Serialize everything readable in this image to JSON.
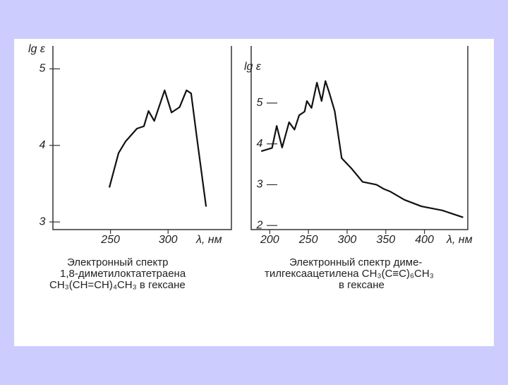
{
  "chart_data": [
    {
      "type": "line",
      "ylabel": "lg ε",
      "xlabel": "λ, нм",
      "caption": [
        "Электронный  спектр",
        "1,8-диметилоктатетраена",
        "CH₃(CH=CH)₄CH₃ в гексане"
      ],
      "x": [
        249,
        257,
        263,
        273,
        279,
        283,
        288,
        297,
        303,
        310,
        316,
        320,
        325,
        333
      ],
      "series": [
        {
          "color": "#111111",
          "values": [
            3.45,
            3.9,
            4.05,
            4.22,
            4.25,
            4.45,
            4.32,
            4.72,
            4.43,
            4.5,
            4.72,
            4.68,
            4.1,
            3.2
          ]
        }
      ],
      "xlim": [
        200,
        355
      ],
      "ylim": [
        2.9,
        5.3
      ],
      "xticks": [
        250,
        300
      ],
      "yticks": [
        3,
        4,
        5
      ]
    },
    {
      "type": "line",
      "ylabel": "lg ε",
      "xlabel": "λ, нм",
      "caption": [
        "Электронный  спектр  диме-",
        "тилгексаацетилена  CH₃(C≡C)₆CH₃",
        "в гексане"
      ],
      "x": [
        189,
        203,
        209,
        216,
        225,
        232,
        238,
        245,
        248,
        254,
        261,
        267,
        272,
        277,
        284,
        293,
        306,
        320,
        338,
        347,
        356,
        374,
        396,
        423,
        450
      ],
      "series": [
        {
          "color": "#111111",
          "values": [
            3.82,
            3.9,
            4.44,
            3.91,
            4.53,
            4.35,
            4.7,
            4.79,
            5.05,
            4.88,
            5.5,
            5.05,
            5.54,
            5.25,
            4.8,
            3.65,
            3.39,
            3.07,
            3.0,
            2.9,
            2.83,
            2.63,
            2.47,
            2.37,
            2.2
          ]
        }
      ],
      "xlim": [
        176,
        456
      ],
      "ylim": [
        1.9,
        6.4
      ],
      "xticks": [
        200,
        250,
        300,
        350,
        400
      ],
      "yticks": [
        2,
        3,
        4,
        5
      ]
    }
  ]
}
